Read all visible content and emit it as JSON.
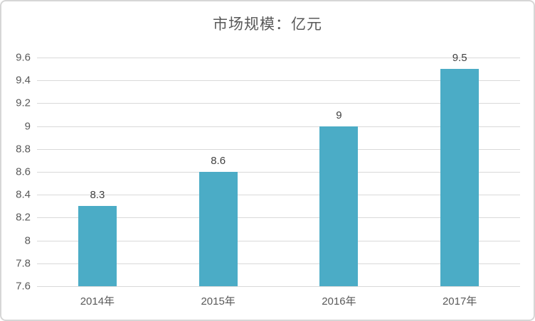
{
  "chart_data": {
    "type": "bar",
    "title": "市场规模：亿元",
    "categories": [
      "2014年",
      "2015年",
      "2016年",
      "2017年"
    ],
    "values": [
      8.3,
      8.6,
      9,
      9.5
    ],
    "data_labels": [
      "8.3",
      "8.6",
      "9",
      "9.5"
    ],
    "xlabel": "",
    "ylabel": "",
    "ylim": [
      7.6,
      9.6
    ],
    "ytick_step": 0.2,
    "yticks": [
      "7.6",
      "7.8",
      "8",
      "8.2",
      "8.4",
      "8.6",
      "8.8",
      "9",
      "9.2",
      "9.4",
      "9.6"
    ],
    "grid": "horizontal",
    "legend": "none",
    "colors": {
      "bar": "#4BACC6",
      "gridline": "#D9D9D9",
      "frame_border": "#D6D6D6",
      "axis_text": "#595959",
      "data_label_text": "#404040",
      "title_text": "#595959",
      "background": "#FFFFFF"
    }
  }
}
